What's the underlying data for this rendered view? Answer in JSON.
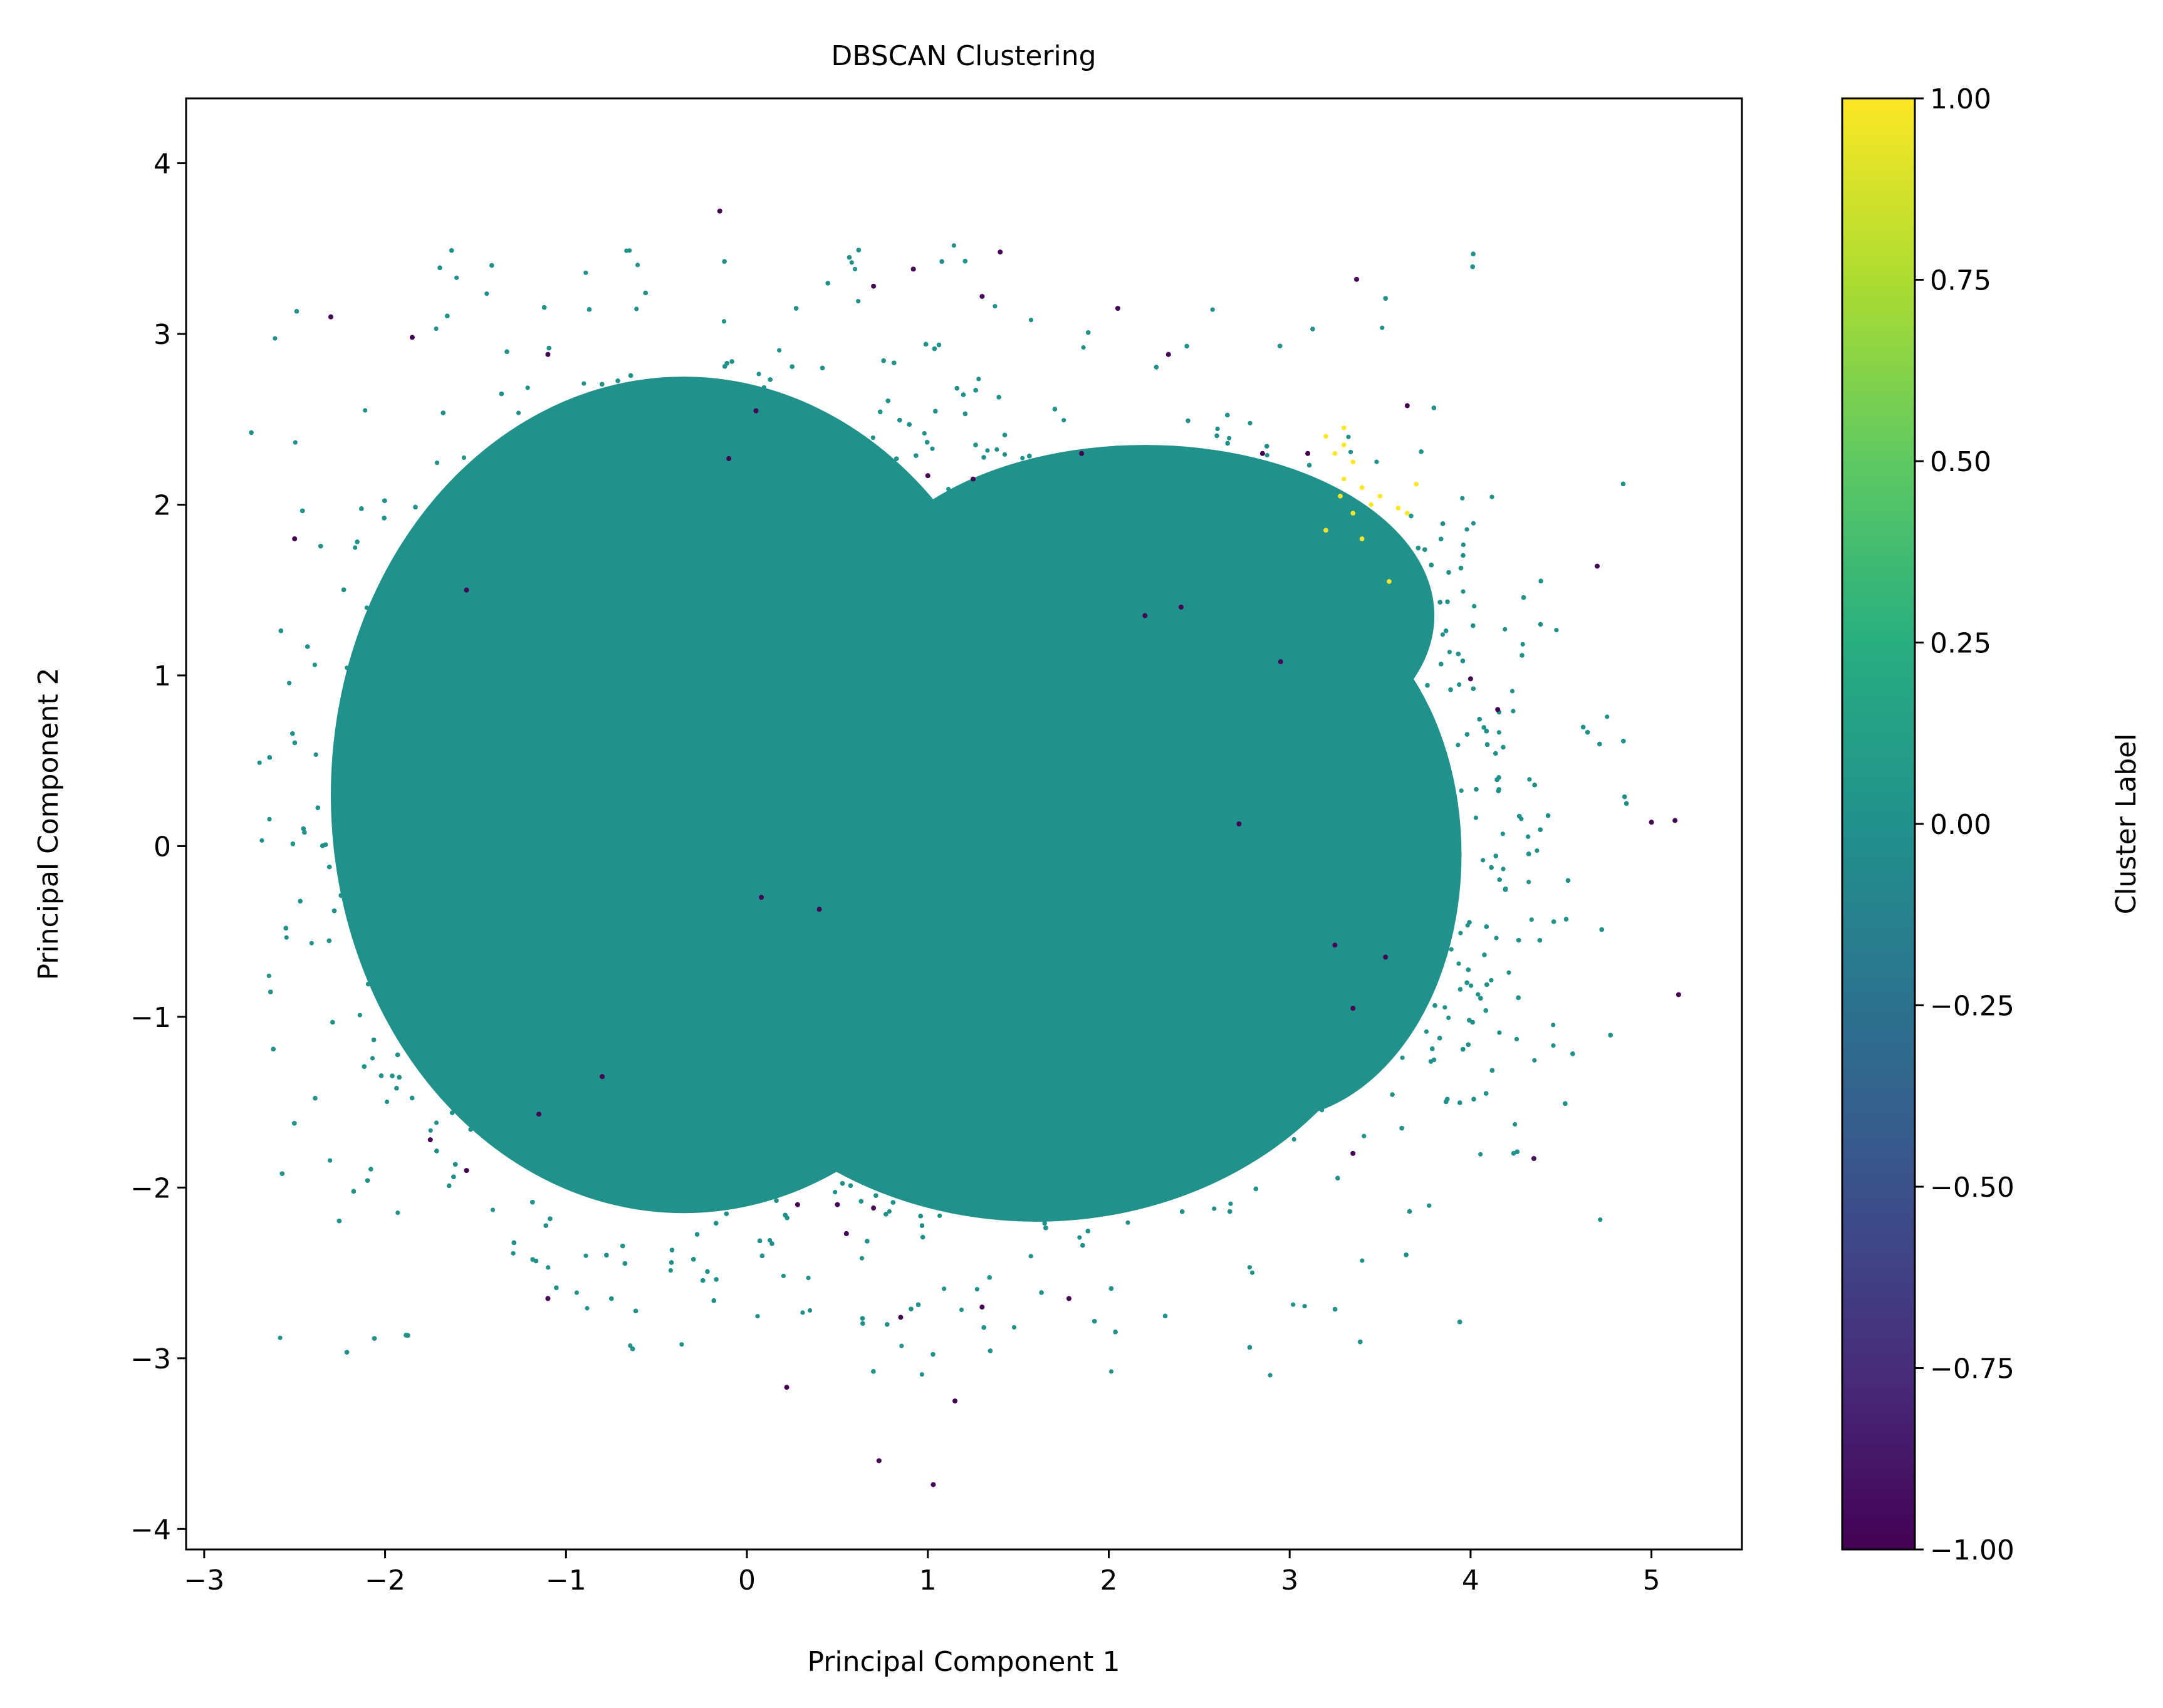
{
  "chart_data": {
    "type": "scatter",
    "title": "DBSCAN Clustering",
    "xlabel": "Principal Component 1",
    "ylabel": "Principal Component 2",
    "xlim": [
      -3.1,
      5.5
    ],
    "ylim": [
      -4.12,
      4.38
    ],
    "xticks": [
      -3,
      -2,
      -1,
      0,
      1,
      2,
      3,
      4,
      5
    ],
    "xtick_labels": [
      "−3",
      "−2",
      "−1",
      "0",
      "1",
      "2",
      "3",
      "4",
      "5"
    ],
    "yticks": [
      -4,
      -3,
      -2,
      -1,
      0,
      1,
      2,
      3,
      4
    ],
    "ytick_labels": [
      "−4",
      "−3",
      "−2",
      "−1",
      "0",
      "1",
      "2",
      "3",
      "4"
    ],
    "grid": false,
    "colorbar": {
      "label": "Cluster Label",
      "colormap": "viridis",
      "range": [
        -1.0,
        1.0
      ],
      "ticks": [
        1.0,
        0.75,
        0.5,
        0.25,
        0.0,
        -0.25,
        -0.5,
        -0.75,
        -1.0
      ],
      "tick_labels": [
        "1.00",
        "0.75",
        "0.50",
        "0.25",
        "0.00",
        "−0.25",
        "−0.50",
        "−0.75",
        "−1.00"
      ]
    },
    "colors": {
      "cluster_0": "#21918c",
      "cluster_1": "#fde725",
      "noise": "#440154"
    },
    "clusters": [
      {
        "label": 0,
        "description_of_mass": "dense core",
        "core_region": {
          "x_range": [
            -2.2,
            3.8
          ],
          "y_range": [
            -2.4,
            2.6
          ]
        },
        "sparse_fringe": {
          "x_range": [
            -2.75,
            4.9
          ],
          "y_range": [
            -3.1,
            4.0
          ]
        }
      },
      {
        "label": 1,
        "points": [
          {
            "x": 3.2,
            "y": 2.4
          },
          {
            "x": 3.3,
            "y": 2.45
          },
          {
            "x": 3.25,
            "y": 2.3
          },
          {
            "x": 3.35,
            "y": 2.25
          },
          {
            "x": 3.3,
            "y": 2.15
          },
          {
            "x": 3.4,
            "y": 2.1
          },
          {
            "x": 3.28,
            "y": 2.05
          },
          {
            "x": 3.45,
            "y": 2.0
          },
          {
            "x": 3.35,
            "y": 1.95
          },
          {
            "x": 3.5,
            "y": 2.05
          },
          {
            "x": 3.6,
            "y": 1.98
          },
          {
            "x": 3.7,
            "y": 2.12
          },
          {
            "x": 3.4,
            "y": 1.8
          },
          {
            "x": 3.2,
            "y": 1.85
          },
          {
            "x": 3.55,
            "y": 1.55
          },
          {
            "x": 3.65,
            "y": 1.95
          },
          {
            "x": 3.3,
            "y": 2.35
          }
        ]
      },
      {
        "label": -1,
        "points": [
          {
            "x": -2.3,
            "y": 3.1
          },
          {
            "x": -1.85,
            "y": 2.98
          },
          {
            "x": -1.1,
            "y": 2.88
          },
          {
            "x": -0.15,
            "y": 3.72
          },
          {
            "x": 0.7,
            "y": 3.28
          },
          {
            "x": 0.92,
            "y": 3.38
          },
          {
            "x": 1.4,
            "y": 3.48
          },
          {
            "x": 1.3,
            "y": 3.22
          },
          {
            "x": 2.05,
            "y": 3.15
          },
          {
            "x": 3.37,
            "y": 3.32
          },
          {
            "x": 3.65,
            "y": 2.58
          },
          {
            "x": 4.7,
            "y": 1.64
          },
          {
            "x": 5.0,
            "y": 0.14
          },
          {
            "x": 5.13,
            "y": 0.15
          },
          {
            "x": 5.15,
            "y": -0.87
          },
          {
            "x": 4.35,
            "y": -1.83
          },
          {
            "x": 3.35,
            "y": -1.8
          },
          {
            "x": 3.35,
            "y": -0.95
          },
          {
            "x": 3.25,
            "y": -0.58
          },
          {
            "x": 2.72,
            "y": 0.13
          },
          {
            "x": 2.2,
            "y": 1.35
          },
          {
            "x": 2.4,
            "y": 1.4
          },
          {
            "x": 2.95,
            "y": 1.08
          },
          {
            "x": 3.1,
            "y": 2.3
          },
          {
            "x": 2.85,
            "y": 2.3
          },
          {
            "x": 2.33,
            "y": 2.88
          },
          {
            "x": 1.85,
            "y": 2.3
          },
          {
            "x": 1.25,
            "y": 2.15
          },
          {
            "x": 1.0,
            "y": 2.17
          },
          {
            "x": 0.05,
            "y": 2.55
          },
          {
            "x": -0.1,
            "y": 2.27
          },
          {
            "x": -2.5,
            "y": 1.8
          },
          {
            "x": -1.55,
            "y": 1.5
          },
          {
            "x": 0.4,
            "y": -0.37
          },
          {
            "x": 0.08,
            "y": -0.3
          },
          {
            "x": -0.8,
            "y": -1.35
          },
          {
            "x": -1.15,
            "y": -1.57
          },
          {
            "x": -1.75,
            "y": -1.72
          },
          {
            "x": -1.55,
            "y": -1.9
          },
          {
            "x": -1.1,
            "y": -2.65
          },
          {
            "x": 0.28,
            "y": -2.1
          },
          {
            "x": 0.5,
            "y": -2.1
          },
          {
            "x": 0.55,
            "y": -2.27
          },
          {
            "x": 0.7,
            "y": -2.12
          },
          {
            "x": 0.85,
            "y": -2.76
          },
          {
            "x": 1.3,
            "y": -2.7
          },
          {
            "x": 1.78,
            "y": -2.65
          },
          {
            "x": 0.22,
            "y": -3.17
          },
          {
            "x": 1.15,
            "y": -3.25
          },
          {
            "x": 0.73,
            "y": -3.6
          },
          {
            "x": 1.03,
            "y": -3.74
          },
          {
            "x": 3.53,
            "y": -0.65
          },
          {
            "x": 4.15,
            "y": 0.8
          },
          {
            "x": 4.0,
            "y": 0.98
          }
        ]
      }
    ]
  }
}
